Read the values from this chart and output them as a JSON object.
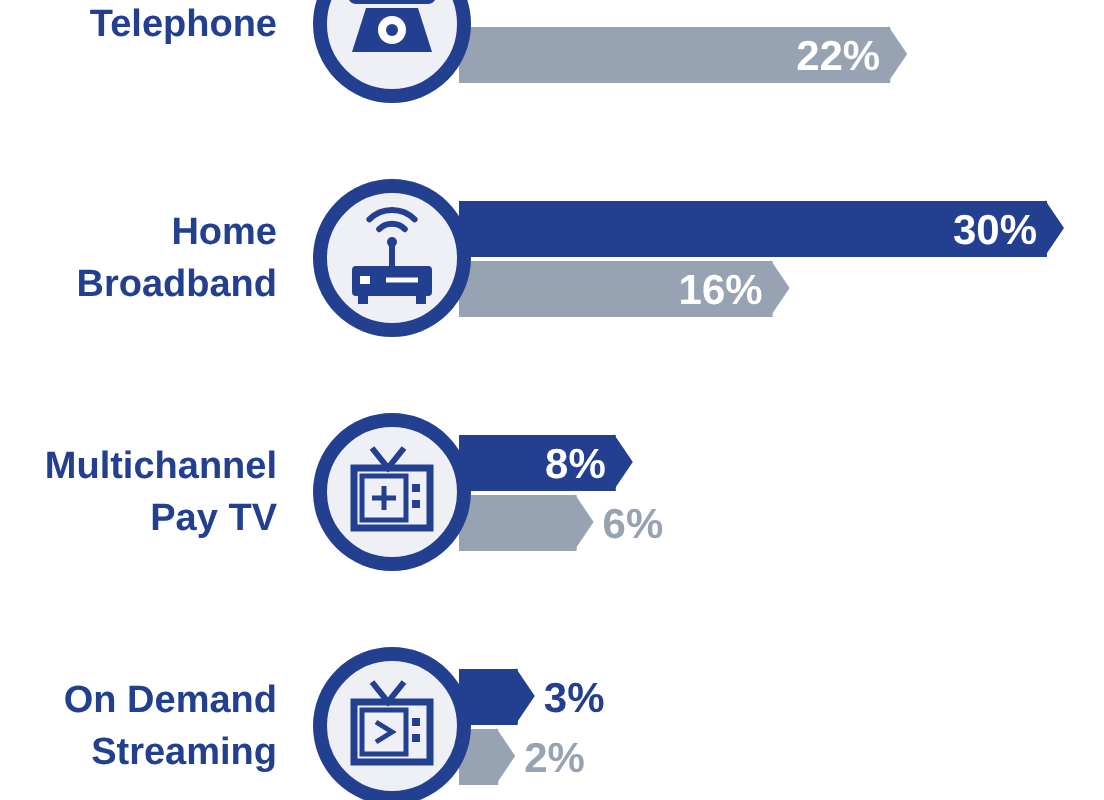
{
  "chart_data": {
    "type": "bar",
    "orientation": "horizontal",
    "categories": [
      "Telephone",
      "Home Broadband",
      "Multichannel Pay TV",
      "On Demand Streaming"
    ],
    "series": [
      {
        "color": "#22408f",
        "values": [
          null,
          30,
          8,
          3
        ],
        "value_labels": [
          null,
          "30%",
          "8%",
          "3%"
        ]
      },
      {
        "color": "#97a2b2",
        "values": [
          22,
          16,
          6,
          2
        ],
        "value_labels": [
          "22%",
          "16%",
          "6%",
          "2%"
        ]
      }
    ]
  }
}
